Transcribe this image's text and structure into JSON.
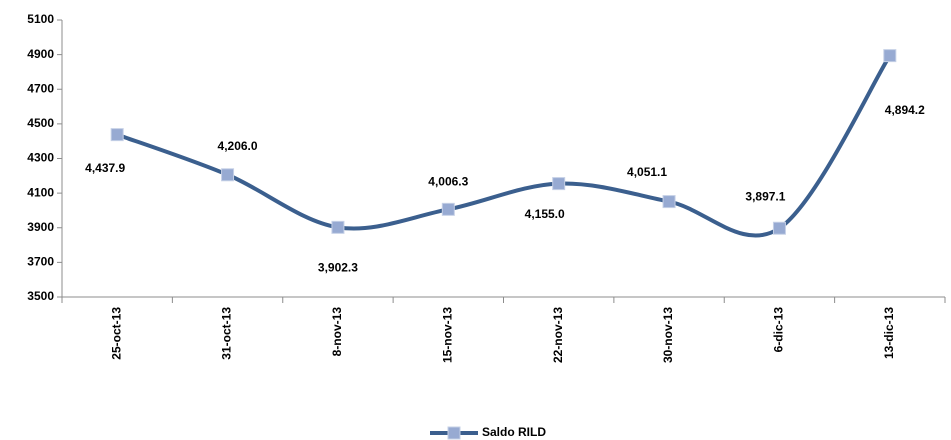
{
  "chart_data": {
    "type": "line",
    "categories": [
      "25-oct-13",
      "31-oct-13",
      "8-nov-13",
      "15-nov-13",
      "22-nov-13",
      "30-nov-13",
      "6-dic-13",
      "13-dic-13"
    ],
    "series": [
      {
        "name": "Saldo RILD",
        "color": "#3b5f8e",
        "marker_color": "#97aad2",
        "values": [
          4437.9,
          4206.0,
          3902.3,
          4006.3,
          4155.0,
          4051.1,
          3897.1,
          4894.2
        ],
        "value_labels": [
          "4,437.9",
          "4,206.0",
          "3,902.3",
          "4,006.3",
          "4,155.0",
          "4,051.1",
          "3,897.1",
          "4,894.2"
        ]
      }
    ],
    "ylim": [
      3500,
      5100
    ],
    "yticks": [
      3500,
      3700,
      3900,
      4100,
      4300,
      4500,
      4700,
      4900,
      5100
    ],
    "legend": "bottom",
    "smooth": true
  }
}
